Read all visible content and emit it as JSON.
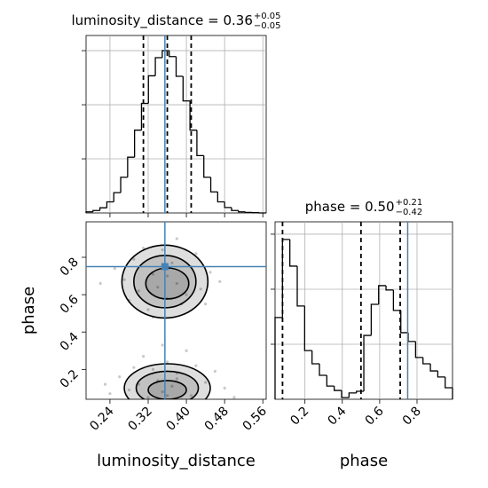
{
  "chart_data": [
    {
      "type": "histogram",
      "title": {
        "text": "luminosity_distance = 0.36",
        "upper": "+0.05",
        "lower": "−0.05"
      },
      "bins": [
        0.19,
        0.2045,
        0.219,
        0.2335,
        0.248,
        0.2625,
        0.277,
        0.2915,
        0.306,
        0.3205,
        0.335,
        0.3495,
        0.364,
        0.3785,
        0.393,
        0.4075,
        0.422,
        0.4365,
        0.451,
        0.4655,
        0.48,
        0.4945,
        0.509,
        0.5235,
        0.538,
        0.5525,
        0.567
      ],
      "values": [
        4,
        9,
        19,
        41,
        75,
        132,
        206,
        306,
        405,
        507,
        574,
        600,
        578,
        505,
        414,
        306,
        212,
        132,
        78,
        41,
        20,
        9,
        4,
        2,
        1,
        0
      ],
      "xlim": [
        0.19,
        0.567
      ],
      "ylim": [
        0,
        656
      ],
      "xticks": [
        0.24,
        0.32,
        {
          "value": 0.4,
          "label": "0.40"
        },
        0.48,
        0.56
      ],
      "yticks": [
        200,
        400,
        600
      ],
      "show_xtick_labels": false,
      "show_ytick_labels": false,
      "quantiles": [
        0.31,
        0.36,
        0.41
      ],
      "truth": [
        0.355
      ],
      "color": "#000000",
      "truth_color": "#4682b4",
      "grid": true
    },
    {
      "type": "scatter",
      "xlabel": "luminosity_distance",
      "ylabel": "phase",
      "x": [
        0.3,
        0.33,
        0.38,
        0.41,
        0.36,
        0.29,
        0.43,
        0.35,
        0.27,
        0.39,
        0.32,
        0.45,
        0.37,
        0.31,
        0.4,
        0.25,
        0.47,
        0.34,
        0.36,
        0.42,
        0.28,
        0.38,
        0.33,
        0.44,
        0.22,
        0.3,
        0.35,
        0.38,
        0.41,
        0.33,
        0.28,
        0.44,
        0.36,
        0.26,
        0.39,
        0.32,
        0.46,
        0.37,
        0.31,
        0.42,
        0.24,
        0.48,
        0.34,
        0.36,
        0.4,
        0.29,
        0.38,
        0.23,
        0.5,
        0.35
      ],
      "y": [
        0.62,
        0.71,
        0.66,
        0.75,
        0.58,
        0.79,
        0.63,
        0.84,
        0.68,
        0.55,
        0.52,
        0.72,
        0.77,
        0.85,
        0.6,
        0.74,
        0.67,
        0.64,
        0.7,
        0.82,
        0.57,
        0.9,
        0.48,
        0.55,
        0.66,
        0.12,
        0.08,
        0.15,
        0.06,
        0.2,
        0.09,
        0.13,
        0.24,
        0.16,
        0.04,
        0.05,
        0.19,
        0.11,
        0.27,
        0.22,
        0.07,
        0.1,
        0.14,
        0.06,
        0.3,
        0.21,
        0.18,
        0.12,
        0.05,
        0.33
      ],
      "contours": [
        {
          "cx": 0.355,
          "cy": 0.67,
          "rx": 0.09,
          "ry": 0.195
        },
        {
          "cx": 0.355,
          "cy": 0.67,
          "rx": 0.065,
          "ry": 0.14
        },
        {
          "cx": 0.36,
          "cy": 0.66,
          "rx": 0.045,
          "ry": 0.083
        },
        {
          "cx": 0.36,
          "cy": 0.1,
          "rx": 0.09,
          "ry": 0.13
        },
        {
          "cx": 0.36,
          "cy": 0.1,
          "rx": 0.065,
          "ry": 0.09
        },
        {
          "cx": 0.36,
          "cy": 0.09,
          "rx": 0.04,
          "ry": 0.05
        }
      ],
      "xlim": [
        0.19,
        0.567
      ],
      "ylim": [
        0.04,
        0.99
      ],
      "xticks": [
        0.24,
        0.32,
        {
          "value": 0.4,
          "label": "0.40"
        },
        0.48,
        0.56
      ],
      "yticks": [
        0.2,
        0.4,
        0.6,
        0.8
      ],
      "show_xtick_labels": true,
      "show_ytick_labels": true,
      "truth": [
        0.355,
        0.75
      ],
      "color": "#777777",
      "truth_color": "#4682b4",
      "grid": false
    },
    {
      "type": "histogram",
      "title": {
        "text": "phase = 0.50",
        "upper": "+0.21",
        "lower": "−0.42"
      },
      "xlabel": "phase",
      "bins": [
        0.04,
        0.0796,
        0.1192,
        0.1588,
        0.1984,
        0.238,
        0.2776,
        0.3172,
        0.3568,
        0.3964,
        0.436,
        0.4756,
        0.5152,
        0.5548,
        0.5944,
        0.634,
        0.6736,
        0.7132,
        0.7528,
        0.7924,
        0.832,
        0.8716,
        0.9112,
        0.9508,
        0.99
      ],
      "values": [
        297,
        581,
        484,
        339,
        177,
        129,
        87,
        48,
        32,
        6,
        23,
        29,
        232,
        345,
        413,
        397,
        323,
        242,
        210,
        152,
        129,
        103,
        81,
        42
      ],
      "xlim": [
        0.04,
        0.99
      ],
      "ylim": [
        0,
        645
      ],
      "xticks": [
        0.2,
        0.4,
        0.6,
        0.8
      ],
      "yticks": [
        200,
        400,
        600
      ],
      "show_xtick_labels": true,
      "show_ytick_labels": false,
      "quantiles": [
        0.08,
        0.5,
        0.71
      ],
      "truth": [
        0.75
      ],
      "color": "#000000",
      "truth_color": "#4682b4",
      "grid": true
    }
  ]
}
